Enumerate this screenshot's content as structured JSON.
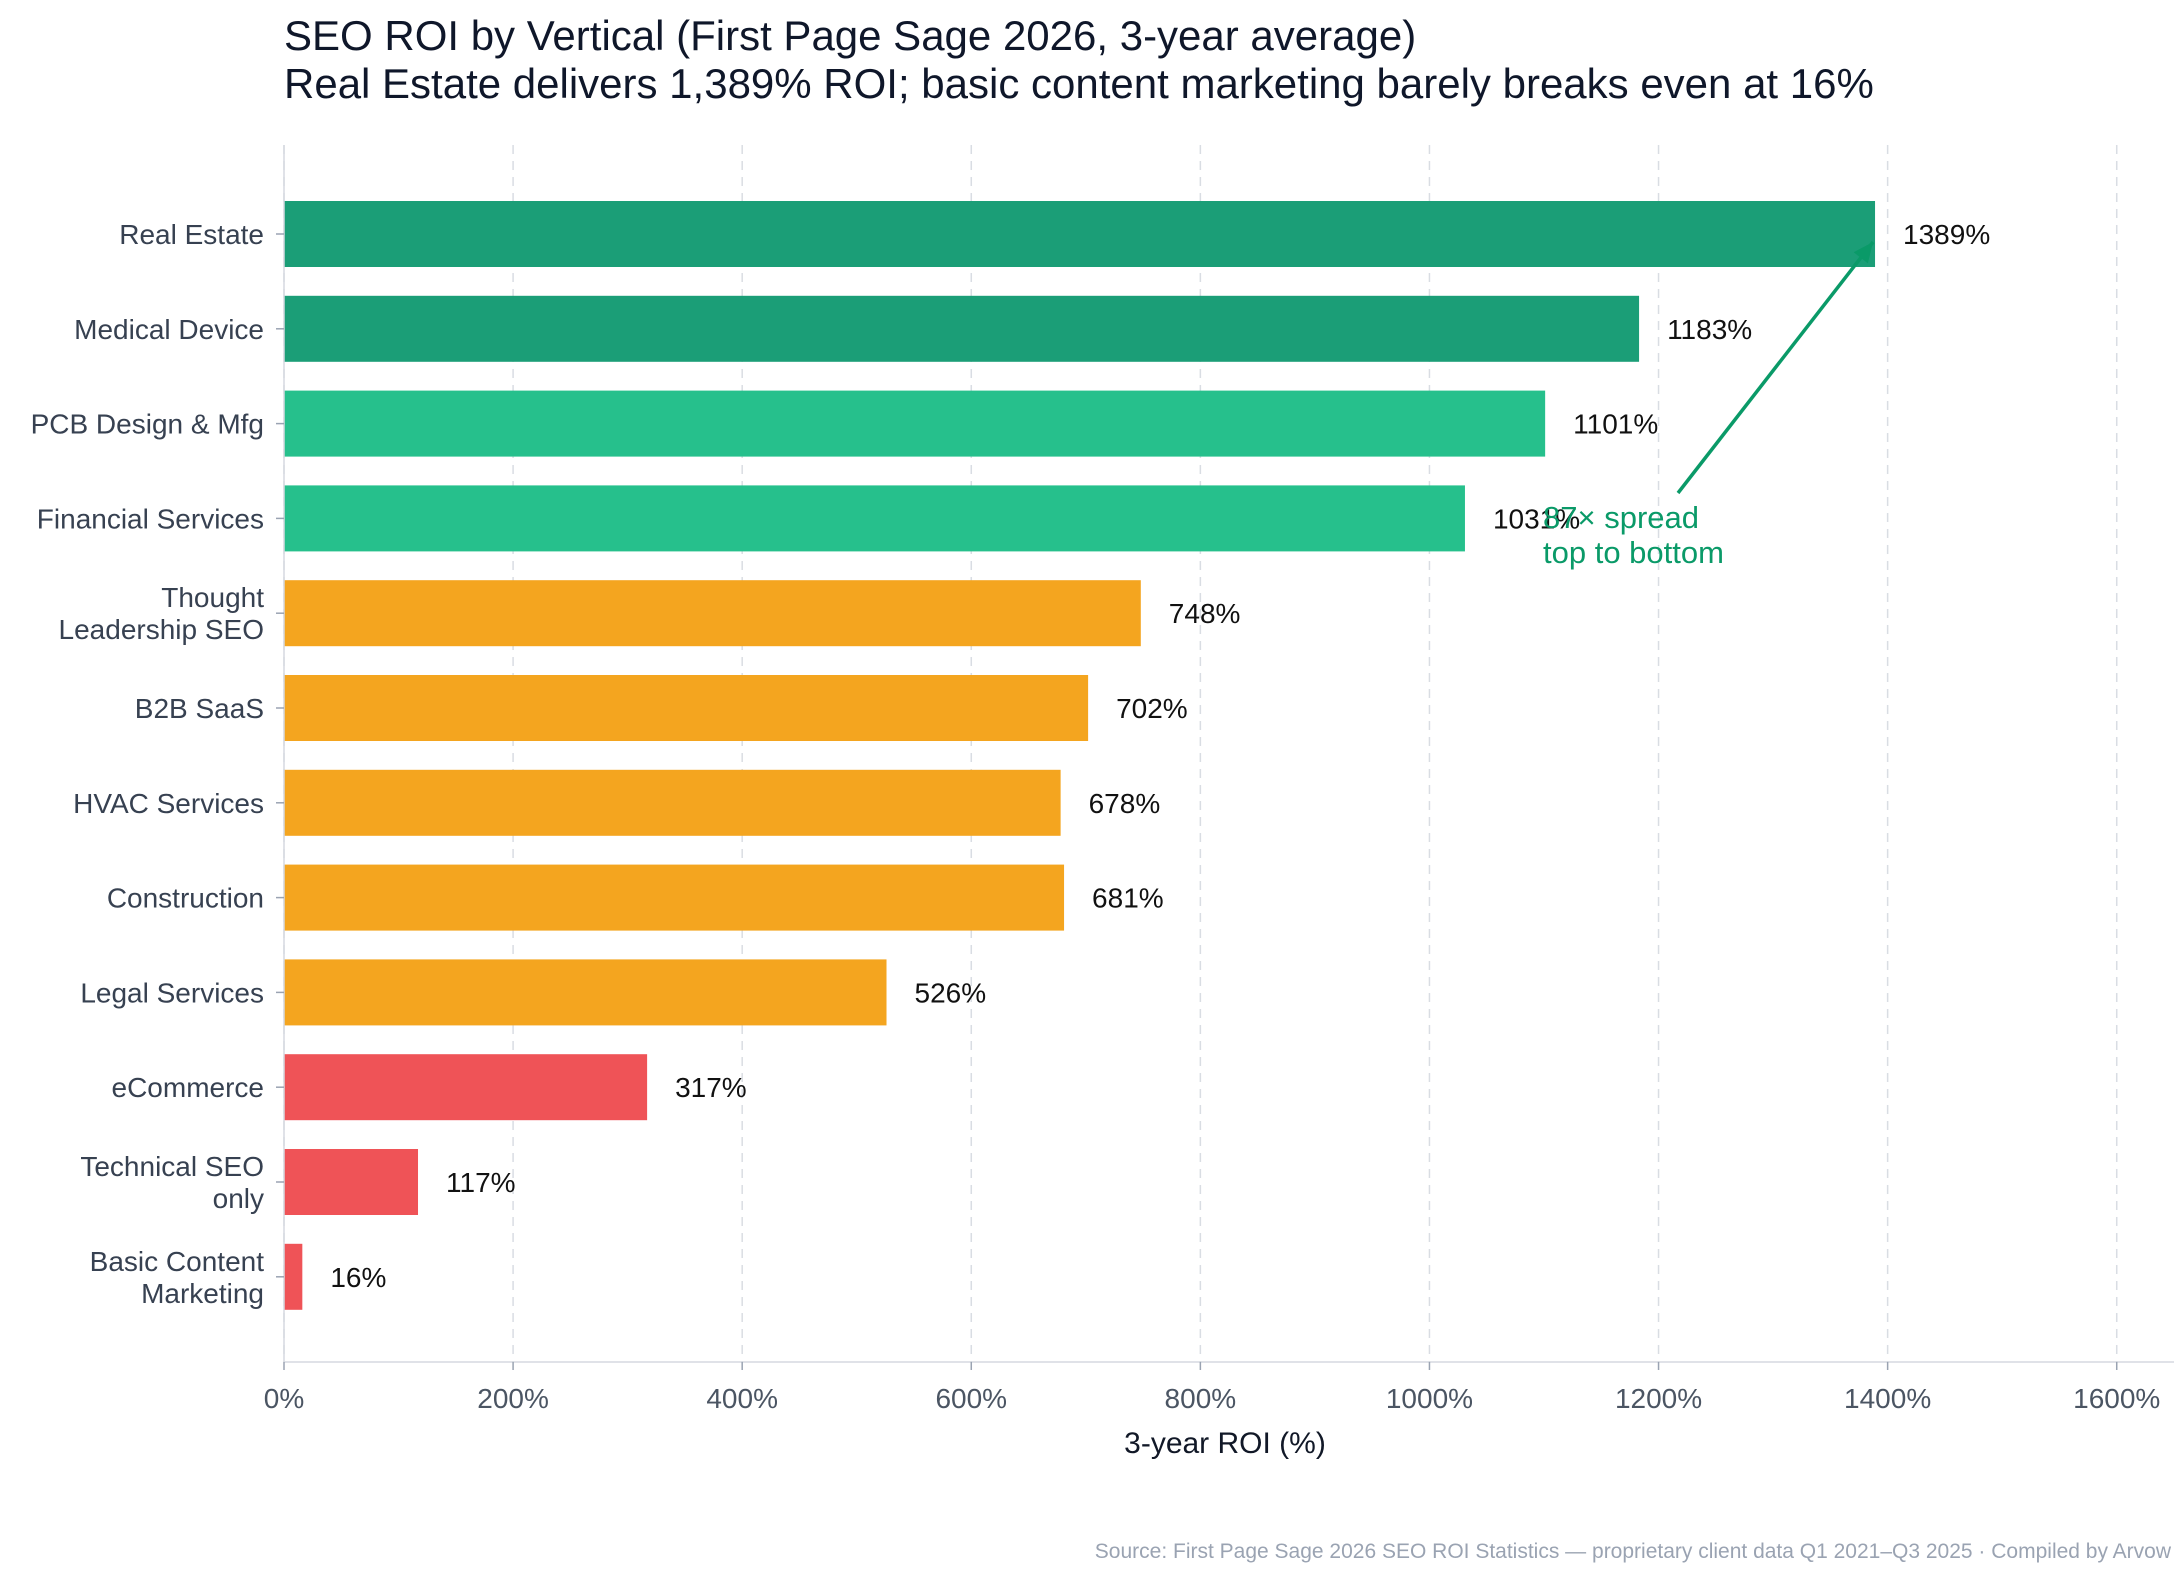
{
  "title": "SEO ROI by Vertical (First Page Sage 2026, 3-year average)",
  "subtitle": "Real Estate delivers 1,389% ROI; basic content marketing barely breaks even at 16%",
  "source": "Source: First Page Sage 2026 SEO ROI Statistics — proprietary client data Q1 2021–Q3 2025 · Compiled by Arvow",
  "colors": {
    "dark_green": "#1b9e77",
    "green": "#26c08c",
    "orange": "#f4a51f",
    "red": "#ef5357",
    "annotation": "#0a9a68"
  },
  "chart_data": {
    "type": "bar",
    "orientation": "horizontal",
    "categories": [
      "Real Estate",
      "Medical Device",
      "PCB Design & Mfg",
      "Financial Services",
      "Thought\nLeadership SEO",
      "B2B SaaS",
      "HVAC Services",
      "Construction",
      "Legal Services",
      "eCommerce",
      "Technical SEO\nonly",
      "Basic Content\nMarketing"
    ],
    "values": [
      1389,
      1183,
      1101,
      1031,
      748,
      702,
      678,
      681,
      526,
      317,
      117,
      16
    ],
    "value_labels": [
      "1389%",
      "1183%",
      "1101%",
      "1031%",
      "748%",
      "702%",
      "678%",
      "681%",
      "526%",
      "317%",
      "117%",
      "16%"
    ],
    "bar_colors": [
      "dark_green",
      "dark_green",
      "green",
      "green",
      "orange",
      "orange",
      "orange",
      "orange",
      "orange",
      "red",
      "red",
      "red"
    ],
    "xlabel": "3-year ROI (%)",
    "ylabel": "",
    "xlim": [
      0,
      1650
    ],
    "xticks": [
      0,
      200,
      400,
      600,
      800,
      1000,
      1200,
      1400,
      1600
    ],
    "xtick_labels": [
      "0%",
      "200%",
      "400%",
      "600%",
      "800%",
      "1000%",
      "1200%",
      "1400%",
      "1600%"
    ],
    "grid": "vertical dashed",
    "annotation": {
      "text_lines": [
        "87× spread",
        "top to bottom"
      ],
      "arrow_to_category": "Real Estate",
      "arrow_to_value": 1389,
      "text_at_value": 1100
    }
  }
}
